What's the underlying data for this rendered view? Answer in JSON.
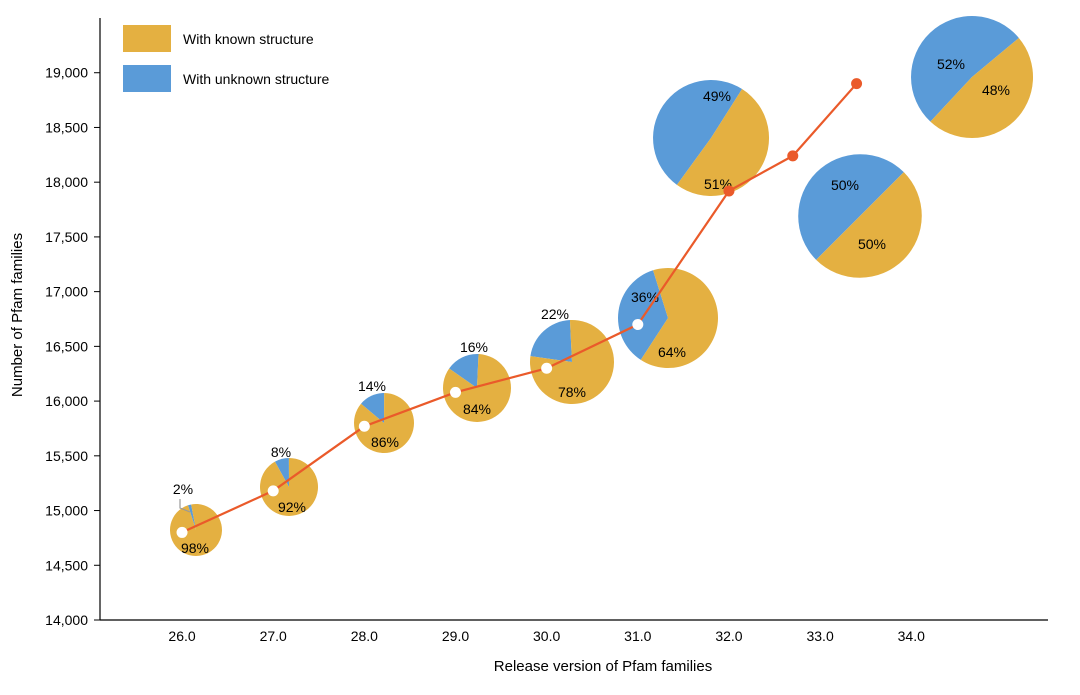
{
  "chart_data": {
    "type": "line",
    "title": "",
    "xlabel": "Release version of Pfam families",
    "ylabel": "Number of Pfam families",
    "xlim": [
      25.1,
      35.5
    ],
    "ylim": [
      14000,
      19500
    ],
    "x_ticks": [
      "26.0",
      "27.0",
      "28.0",
      "29.0",
      "30.0",
      "31.0",
      "32.0",
      "33.0",
      "34.0"
    ],
    "y_ticks": [
      "14,000",
      "14,500",
      "15,000",
      "15,500",
      "16,000",
      "16,500",
      "17,000",
      "17,500",
      "18,000",
      "18,500",
      "19,000"
    ],
    "grid": false,
    "legend": {
      "position": "top-left",
      "entries": [
        {
          "name": "With known structure",
          "color": "#e4b041"
        },
        {
          "name": "With unknown structure",
          "color": "#5a9bd8"
        }
      ]
    },
    "line_color": "#ea5a2a",
    "series": [
      {
        "name": "",
        "points": [
          {
            "x": 26.0,
            "y": 14800
          },
          {
            "x": 27.0,
            "y": 15180
          },
          {
            "x": 28.0,
            "y": 15770
          },
          {
            "x": 29.0,
            "y": 16080
          },
          {
            "x": 30.0,
            "y": 16300
          },
          {
            "x": 31.0,
            "y": 16700
          },
          {
            "x": 32.0,
            "y": 17920
          },
          {
            "x": 32.7,
            "y": 18240
          },
          {
            "x": 33.4,
            "y": 18900
          }
        ]
      }
    ],
    "pies": [
      {
        "release": "26.0",
        "known": "98%",
        "unknown": "2%",
        "known_value": 98,
        "unknown_value": 2
      },
      {
        "release": "27.0",
        "known": "92%",
        "unknown": "8%",
        "known_value": 92,
        "unknown_value": 8
      },
      {
        "release": "28.0",
        "known": "86%",
        "unknown": "14%",
        "known_value": 86,
        "unknown_value": 14
      },
      {
        "release": "29.0",
        "known": "84%",
        "unknown": "16%",
        "known_value": 84,
        "unknown_value": 16
      },
      {
        "release": "30.0",
        "known": "78%",
        "unknown": "22%",
        "known_value": 78,
        "unknown_value": 22
      },
      {
        "release": "31.0",
        "known": "64%",
        "unknown": "36%",
        "known_value": 64,
        "unknown_value": 36
      },
      {
        "release": "32.0",
        "known": "51%",
        "unknown": "49%",
        "known_value": 51,
        "unknown_value": 49
      },
      {
        "release": "33.0",
        "known": "50%",
        "unknown": "50%",
        "known_value": 50,
        "unknown_value": 50
      },
      {
        "release": "34.0",
        "known": "48%",
        "unknown": "52%",
        "known_value": 48,
        "unknown_value": 52
      }
    ]
  }
}
